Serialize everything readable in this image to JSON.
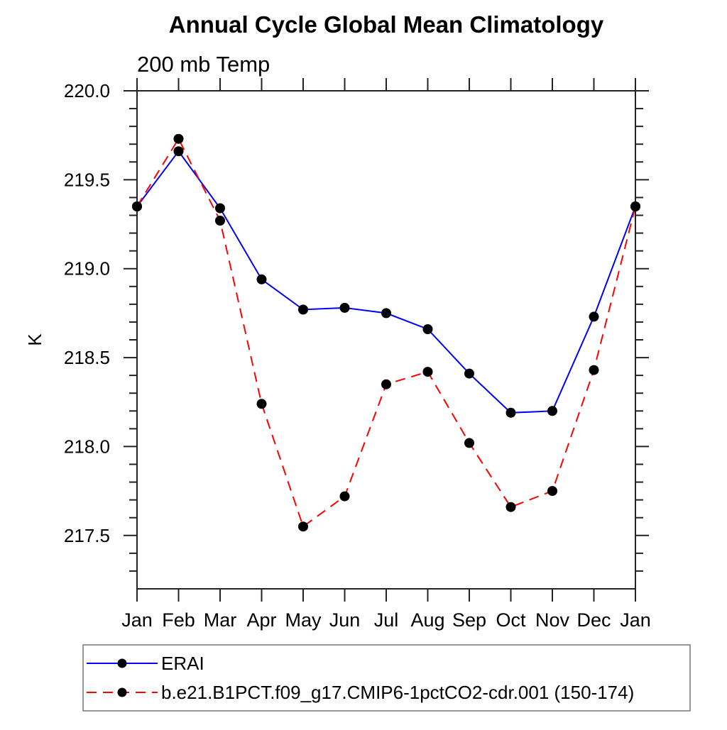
{
  "chart_data": {
    "type": "line",
    "title": "Annual Cycle Global Mean Climatology",
    "subtitle": "200 mb Temp",
    "ylabel": "K",
    "categories": [
      "Jan",
      "Feb",
      "Mar",
      "Apr",
      "May",
      "Jun",
      "Jul",
      "Aug",
      "Sep",
      "Oct",
      "Nov",
      "Dec",
      "Jan"
    ],
    "ylim": [
      217.2,
      220.0
    ],
    "yticks_major": [
      217.5,
      218.0,
      218.5,
      219.0,
      219.5,
      220.0
    ],
    "ytick_labels": [
      "217.5",
      "218.0",
      "218.5",
      "219.0",
      "219.5",
      "220.0"
    ],
    "minor_tick_step": 0.1,
    "grid": false,
    "legend_position": "bottom-left",
    "axis_color": "#222222",
    "series": [
      {
        "name": "ERAI",
        "color": "#0000ff",
        "style": "solid",
        "marker": "circle",
        "marker_color": "#000000",
        "values": [
          219.35,
          219.66,
          219.34,
          218.94,
          218.77,
          218.78,
          218.75,
          218.66,
          218.41,
          218.19,
          218.2,
          218.73,
          219.35
        ]
      },
      {
        "name": "b.e21.B1PCT.f09_g17.CMIP6-1pctCO2-cdr.001 (150-174)",
        "color": "#ff0000",
        "style": "dashed",
        "marker": "circle",
        "marker_color": "#000000",
        "values": [
          219.35,
          219.73,
          219.27,
          218.24,
          217.55,
          217.72,
          218.35,
          218.42,
          218.02,
          217.66,
          217.75,
          218.43,
          219.35
        ]
      }
    ]
  }
}
